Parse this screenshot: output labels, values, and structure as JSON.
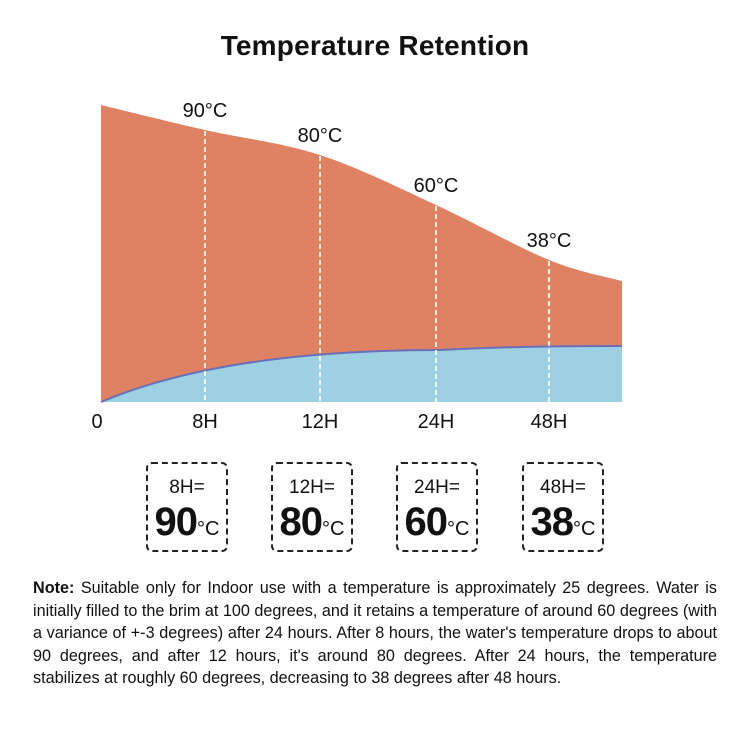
{
  "title": "Temperature Retention",
  "chart_data": {
    "type": "area",
    "title": "Temperature Retention",
    "x_tick_labels": [
      "0",
      "8H",
      "12H",
      "24H",
      "48H"
    ],
    "series": [
      {
        "color": "#df8163",
        "values": [
          100,
          90,
          80,
          60,
          38
        ]
      },
      {
        "color": "#9dd0e3"
      }
    ],
    "point_labels": [
      "90°C",
      "80°C",
      "60°C",
      "38°C"
    ],
    "grid": false,
    "legend": "none"
  },
  "cards": [
    {
      "label": "8H=",
      "value": "90",
      "unit": "°C"
    },
    {
      "label": "12H=",
      "value": "80",
      "unit": "°C"
    },
    {
      "label": "24H=",
      "value": "60",
      "unit": "°C"
    },
    {
      "label": "48H=",
      "value": "38",
      "unit": "°C"
    }
  ],
  "note": {
    "label": "Note:",
    "text": "Suitable only for Indoor use with a temperature is approximately 25 degrees. Water is initially filled to the brim at 100 degrees, and it retains a temperature of around 60 degrees (with a variance of +-3 degrees) after 24 hours. After 8 hours, the water's temperature drops to about 90 degrees, and after 12 hours, it's around 80 degrees. After 24 hours, the temperature stabilizes at roughly 60 degrees, decreasing to 38 degrees after 48 hours."
  }
}
